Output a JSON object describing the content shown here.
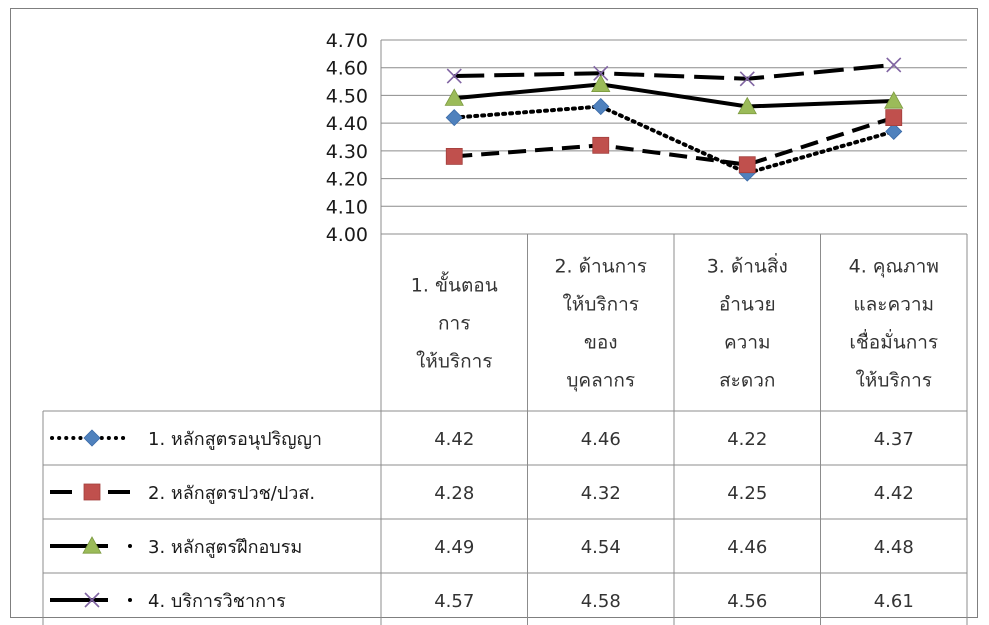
{
  "chart_data": {
    "type": "line",
    "y_ticks": [
      "4.70",
      "4.60",
      "4.50",
      "4.40",
      "4.30",
      "4.20",
      "4.10",
      "4.00"
    ],
    "ylim": [
      4.0,
      4.7
    ],
    "grid": true,
    "legend": "data-table",
    "categories": [
      [
        "1. ขั้นตอน",
        "การ",
        "ให้บริการ"
      ],
      [
        "2. ด้านการ",
        "ให้บริการ",
        "ของ",
        "บุคลากร"
      ],
      [
        "3. ด้านสิ่ง",
        "อำนวย",
        "ความ",
        "สะดวก"
      ],
      [
        "4. คุณภาพ",
        "และความ",
        "เชื่อมั่นการ",
        "ให้บริการ"
      ]
    ],
    "series": [
      {
        "name": "1. หลักสูตรอนุปริญญา",
        "values": [
          4.42,
          4.46,
          4.22,
          4.37
        ],
        "labels": [
          "4.42",
          "4.46",
          "4.22",
          "4.37"
        ],
        "color": "#4f81bd",
        "marker": "diamond",
        "line": "dotted"
      },
      {
        "name": "2. หลักสูตรปวช/ปวส.",
        "values": [
          4.28,
          4.32,
          4.25,
          4.42
        ],
        "labels": [
          "4.28",
          "4.32",
          "4.25",
          "4.42"
        ],
        "color": "#c0504d",
        "marker": "square",
        "line": "dashed"
      },
      {
        "name": "3. หลักสูตรฝึกอบรม",
        "values": [
          4.49,
          4.54,
          4.46,
          4.48
        ],
        "labels": [
          "4.49",
          "4.54",
          "4.46",
          "4.48"
        ],
        "color": "#9bbb59",
        "marker": "triangle",
        "line": "solid"
      },
      {
        "name": "4. บริการวิชาการ",
        "values": [
          4.57,
          4.58,
          4.56,
          4.61
        ],
        "labels": [
          "4.57",
          "4.58",
          "4.56",
          "4.61"
        ],
        "color": "#8064a2",
        "marker": "x",
        "line": "long-dash"
      }
    ]
  }
}
